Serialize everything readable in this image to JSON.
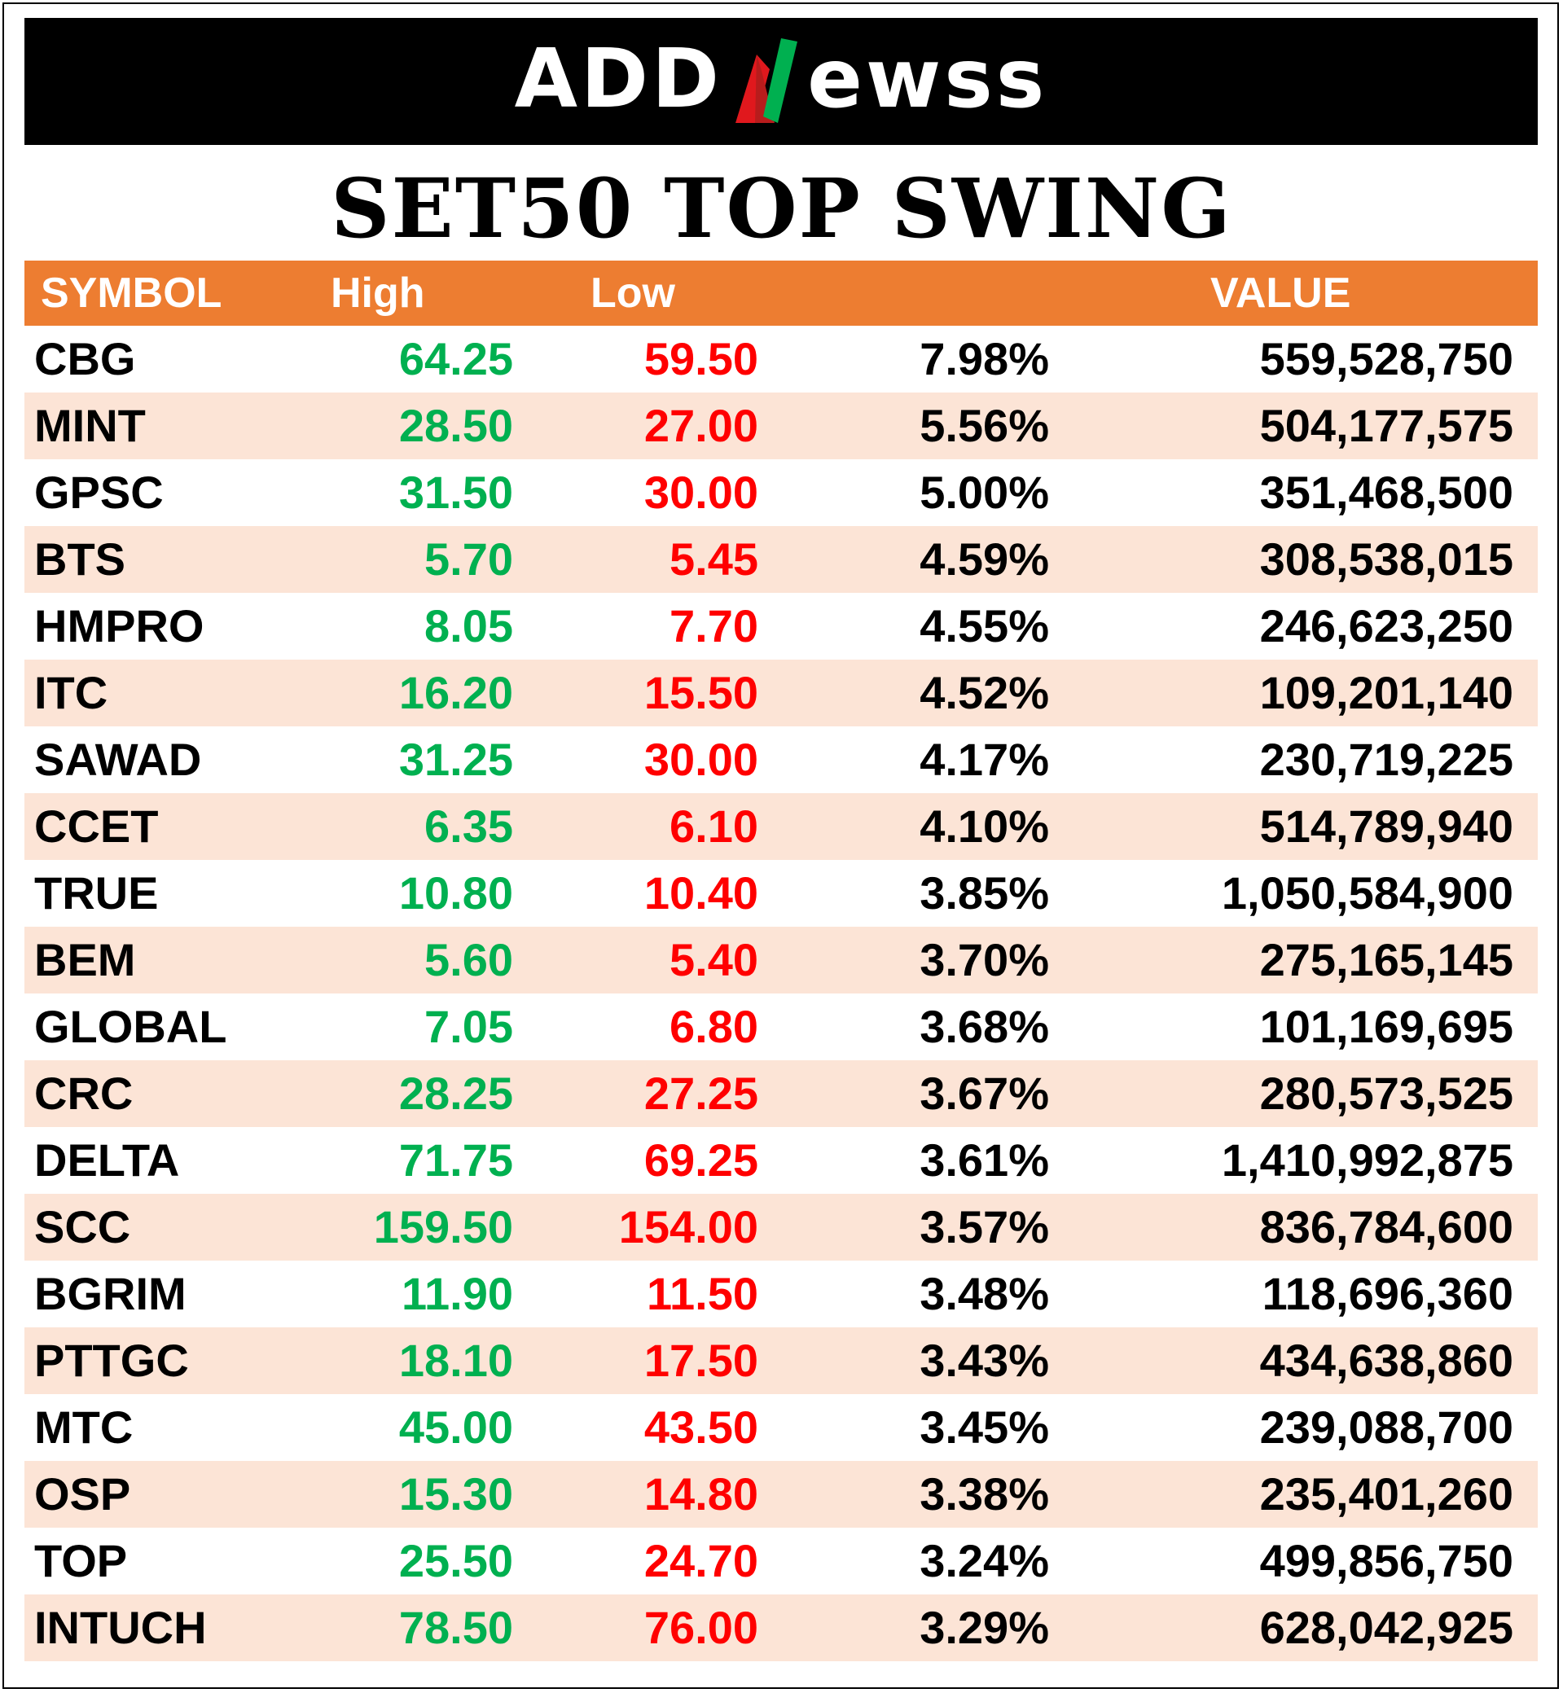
{
  "brand": {
    "logo_left": "ADD",
    "logo_right": "ewss",
    "logo_mark": "N",
    "colors": {
      "banner_bg": "#000000",
      "mark_red": "#e0181d",
      "mark_green": "#00b050"
    }
  },
  "title": "SET50 TOP SWING",
  "table": {
    "header_color": "#ed7d31",
    "alt_row_color": "#fce4d6",
    "high_color": "#00b050",
    "low_color": "#ff0000",
    "headers": {
      "symbol": "SYMBOL",
      "high": "High",
      "low": "Low",
      "pct": "",
      "value": "VALUE"
    },
    "rows": [
      {
        "symbol": "CBG",
        "high": "64.25",
        "low": "59.50",
        "pct": "7.98%",
        "value": "559,528,750"
      },
      {
        "symbol": "MINT",
        "high": "28.50",
        "low": "27.00",
        "pct": "5.56%",
        "value": "504,177,575"
      },
      {
        "symbol": "GPSC",
        "high": "31.50",
        "low": "30.00",
        "pct": "5.00%",
        "value": "351,468,500"
      },
      {
        "symbol": "BTS",
        "high": "5.70",
        "low": "5.45",
        "pct": "4.59%",
        "value": "308,538,015"
      },
      {
        "symbol": "HMPRO",
        "high": "8.05",
        "low": "7.70",
        "pct": "4.55%",
        "value": "246,623,250"
      },
      {
        "symbol": "ITC",
        "high": "16.20",
        "low": "15.50",
        "pct": "4.52%",
        "value": "109,201,140"
      },
      {
        "symbol": "SAWAD",
        "high": "31.25",
        "low": "30.00",
        "pct": "4.17%",
        "value": "230,719,225"
      },
      {
        "symbol": "CCET",
        "high": "6.35",
        "low": "6.10",
        "pct": "4.10%",
        "value": "514,789,940"
      },
      {
        "symbol": "TRUE",
        "high": "10.80",
        "low": "10.40",
        "pct": "3.85%",
        "value": "1,050,584,900"
      },
      {
        "symbol": "BEM",
        "high": "5.60",
        "low": "5.40",
        "pct": "3.70%",
        "value": "275,165,145"
      },
      {
        "symbol": "GLOBAL",
        "high": "7.05",
        "low": "6.80",
        "pct": "3.68%",
        "value": "101,169,695"
      },
      {
        "symbol": "CRC",
        "high": "28.25",
        "low": "27.25",
        "pct": "3.67%",
        "value": "280,573,525"
      },
      {
        "symbol": "DELTA",
        "high": "71.75",
        "low": "69.25",
        "pct": "3.61%",
        "value": "1,410,992,875"
      },
      {
        "symbol": "SCC",
        "high": "159.50",
        "low": "154.00",
        "pct": "3.57%",
        "value": "836,784,600"
      },
      {
        "symbol": "BGRIM",
        "high": "11.90",
        "low": "11.50",
        "pct": "3.48%",
        "value": "118,696,360"
      },
      {
        "symbol": "PTTGC",
        "high": "18.10",
        "low": "17.50",
        "pct": "3.43%",
        "value": "434,638,860"
      },
      {
        "symbol": "MTC",
        "high": "45.00",
        "low": "43.50",
        "pct": "3.45%",
        "value": "239,088,700"
      },
      {
        "symbol": "OSP",
        "high": "15.30",
        "low": "14.80",
        "pct": "3.38%",
        "value": "235,401,260"
      },
      {
        "symbol": "TOP",
        "high": "25.50",
        "low": "24.70",
        "pct": "3.24%",
        "value": "499,856,750"
      },
      {
        "symbol": "INTUCH",
        "high": "78.50",
        "low": "76.00",
        "pct": "3.29%",
        "value": "628,042,925"
      }
    ]
  }
}
